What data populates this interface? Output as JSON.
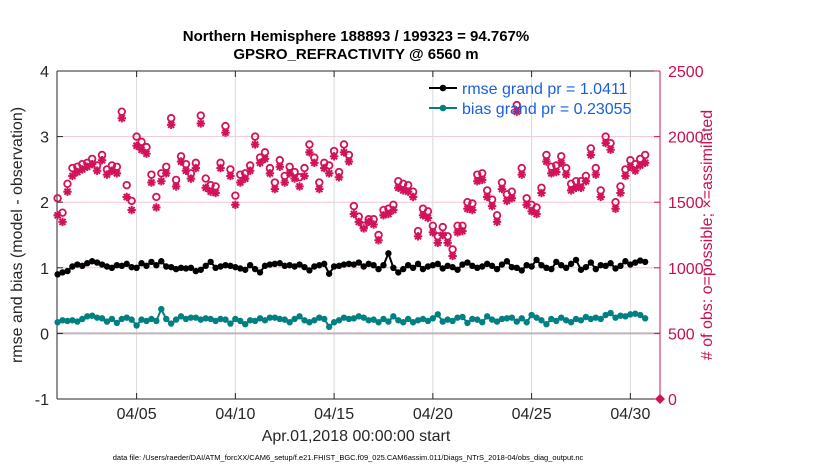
{
  "chart_data": {
    "type": "line",
    "title": "Northern Hemisphere 188893 / 199323 = 94.767%",
    "subtitle": "GPSRO_REFRACTIVITY @ 6560 m",
    "xlabel": "Apr.01,2018 00:00:00 start",
    "ylabel": "rmse and bias (model - observation)",
    "y2label": "# of obs: o=possible; ×=assimilated",
    "footnote": "data file: /Users/raeder/DAI/ATM_forcXX/CAM6_setup/f.e21.FHIST_BGC.f09_025.CAM6assim.011/Diags_NTrS_2018-04/obs_diag_output.nc",
    "x_unit": "days since Apr.01,2018 00:00:00",
    "x_step_days": 0.25,
    "xlim": [
      0,
      30.5
    ],
    "ylim": [
      -1,
      4
    ],
    "y2lim": [
      0,
      2500
    ],
    "xticks": [
      {
        "value": 4,
        "label": "04/05"
      },
      {
        "value": 9,
        "label": "04/10"
      },
      {
        "value": 14,
        "label": "04/15"
      },
      {
        "value": 19,
        "label": "04/20"
      },
      {
        "value": 24,
        "label": "04/25"
      },
      {
        "value": 29,
        "label": "04/30"
      }
    ],
    "yticks": [
      {
        "value": -1,
        "label": "-1"
      },
      {
        "value": 0,
        "label": "0"
      },
      {
        "value": 1,
        "label": "1"
      },
      {
        "value": 2,
        "label": "2"
      },
      {
        "value": 3,
        "label": "3"
      },
      {
        "value": 4,
        "label": "4"
      }
    ],
    "y2ticks": [
      {
        "value": 0,
        "label": "0"
      },
      {
        "value": 500,
        "label": "500"
      },
      {
        "value": 1000,
        "label": "1000"
      },
      {
        "value": 1500,
        "label": "1500"
      },
      {
        "value": 2000,
        "label": "2000"
      },
      {
        "value": 2500,
        "label": "2500"
      }
    ],
    "grid": true,
    "legend_placement": "top-right",
    "legend": [
      {
        "label": "rmse grand pr = 1.0411",
        "series": "rmse"
      },
      {
        "label": "bias grand pr = 0.23055",
        "series": "bias"
      }
    ],
    "colors": {
      "rmse": "#000000",
      "bias": "#008080",
      "obs": "#d1135a",
      "legend_text": "#1a5fe0",
      "grid_h": "#f2c6d6",
      "grid_v": "#d9d9d9",
      "zero_line": "#c0b4ba"
    },
    "series": [
      {
        "name": "rmse",
        "axis": "left",
        "marker": "circle",
        "values": [
          0.9,
          0.93,
          0.95,
          1.02,
          1.05,
          1.03,
          1.07,
          1.1,
          1.08,
          1.05,
          1.02,
          1.0,
          1.04,
          1.03,
          1.06,
          1.01,
          1.0,
          1.07,
          1.03,
          1.09,
          1.04,
          1.1,
          1.02,
          1.01,
          0.98,
          1.0,
          0.99,
          1.0,
          0.95,
          0.97,
          1.03,
          1.09,
          1.0,
          1.02,
          1.04,
          1.03,
          1.01,
          0.99,
          0.97,
          1.04,
          0.98,
          0.93,
          1.03,
          1.05,
          1.06,
          1.07,
          1.03,
          1.04,
          1.02,
          1.05,
          1.01,
          0.96,
          1.02,
          1.04,
          1.06,
          0.91,
          1.02,
          1.03,
          1.05,
          1.06,
          1.05,
          1.08,
          1.02,
          1.06,
          1.04,
          0.98,
          1.04,
          1.22,
          1.0,
          0.93,
          0.98,
          1.04,
          1.0,
          1.06,
          0.98,
          1.02,
          1.04,
          1.06,
          0.99,
          1.03,
          1.01,
          0.97,
          1.05,
          1.08,
          1.03,
          1.0,
          1.02,
          1.06,
          1.03,
          0.98,
          1.05,
          1.1,
          1.01,
          1.0,
          0.96,
          1.04,
          1.02,
          1.12,
          1.04,
          1.0,
          0.98,
          1.09,
          1.04,
          1.0,
          1.06,
          1.12,
          0.97,
          1.01,
          1.08,
          0.98,
          1.04,
          1.03,
          1.07,
          0.99,
          1.03,
          1.1,
          1.05,
          1.08,
          1.11,
          1.09
        ]
      },
      {
        "name": "bias",
        "axis": "left",
        "marker": "circle",
        "values": [
          0.17,
          0.2,
          0.19,
          0.2,
          0.18,
          0.22,
          0.26,
          0.27,
          0.24,
          0.23,
          0.18,
          0.22,
          0.16,
          0.22,
          0.24,
          0.21,
          0.12,
          0.21,
          0.19,
          0.22,
          0.19,
          0.37,
          0.22,
          0.15,
          0.21,
          0.26,
          0.22,
          0.24,
          0.24,
          0.21,
          0.23,
          0.22,
          0.19,
          0.22,
          0.21,
          0.15,
          0.22,
          0.19,
          0.14,
          0.2,
          0.19,
          0.23,
          0.2,
          0.24,
          0.24,
          0.22,
          0.21,
          0.17,
          0.22,
          0.26,
          0.2,
          0.17,
          0.2,
          0.24,
          0.22,
          0.1,
          0.17,
          0.2,
          0.24,
          0.22,
          0.23,
          0.26,
          0.24,
          0.2,
          0.21,
          0.17,
          0.22,
          0.18,
          0.26,
          0.2,
          0.17,
          0.22,
          0.17,
          0.2,
          0.22,
          0.19,
          0.23,
          0.29,
          0.18,
          0.21,
          0.19,
          0.24,
          0.25,
          0.16,
          0.22,
          0.21,
          0.17,
          0.26,
          0.21,
          0.18,
          0.22,
          0.23,
          0.24,
          0.18,
          0.23,
          0.17,
          0.28,
          0.24,
          0.2,
          0.14,
          0.22,
          0.19,
          0.24,
          0.2,
          0.17,
          0.22,
          0.2,
          0.25,
          0.22,
          0.24,
          0.22,
          0.28,
          0.31,
          0.24,
          0.27,
          0.26,
          0.29,
          0.3,
          0.28,
          0.23
        ]
      },
      {
        "name": "obs_possible",
        "axis": "right",
        "marker": "o",
        "values": [
          1530,
          1420,
          1640,
          1760,
          1770,
          1790,
          1800,
          1830,
          1780,
          1860,
          1750,
          1780,
          1770,
          2190,
          1630,
          1510,
          2000,
          1960,
          1920,
          1710,
          1540,
          1720,
          1770,
          2140,
          1670,
          1850,
          1790,
          1720,
          1800,
          2160,
          1680,
          1630,
          1620,
          1800,
          2080,
          1750,
          1550,
          1710,
          1720,
          1780,
          2000,
          1840,
          1880,
          1760,
          1650,
          1820,
          1700,
          1770,
          1730,
          1690,
          1760,
          1940,
          1840,
          1650,
          1800,
          1780,
          1890,
          1730,
          1940,
          1860,
          1470,
          1390,
          1320,
          1370,
          1370,
          1250,
          1440,
          1450,
          1480,
          1660,
          1640,
          1630,
          1580,
          1280,
          1450,
          1430,
          1320,
          1240,
          1310,
          1240,
          1140,
          1320,
          1320,
          1500,
          1490,
          1710,
          1720,
          1590,
          1520,
          1400,
          1650,
          1560,
          1580,
          2240,
          1760,
          1530,
          1480,
          1460,
          1610,
          1860,
          1770,
          1780,
          1850,
          1760,
          1640,
          1660,
          1660,
          1700,
          1910,
          1760,
          1590,
          2000,
          1950,
          1500,
          1620,
          1750,
          1820,
          1790,
          1830,
          1860
        ]
      },
      {
        "name": "obs_assimilated",
        "axis": "right",
        "marker": "asterisk",
        "values": [
          1400,
          1350,
          1580,
          1700,
          1730,
          1750,
          1770,
          1790,
          1740,
          1820,
          1710,
          1740,
          1720,
          2140,
          1540,
          1440,
          1930,
          1900,
          1870,
          1650,
          1460,
          1660,
          1720,
          2090,
          1620,
          1810,
          1740,
          1680,
          1760,
          2100,
          1610,
          1580,
          1570,
          1760,
          2030,
          1700,
          1480,
          1650,
          1680,
          1740,
          1940,
          1800,
          1830,
          1720,
          1600,
          1770,
          1650,
          1720,
          1680,
          1620,
          1700,
          1880,
          1800,
          1600,
          1760,
          1720,
          1850,
          1690,
          1880,
          1810,
          1410,
          1350,
          1300,
          1350,
          1330,
          1210,
          1400,
          1410,
          1440,
          1610,
          1590,
          1580,
          1540,
          1240,
          1400,
          1380,
          1270,
          1190,
          1250,
          1190,
          1090,
          1270,
          1280,
          1450,
          1440,
          1660,
          1670,
          1540,
          1470,
          1350,
          1600,
          1510,
          1530,
          2190,
          1710,
          1480,
          1430,
          1410,
          1570,
          1810,
          1720,
          1730,
          1800,
          1710,
          1590,
          1610,
          1610,
          1660,
          1860,
          1710,
          1540,
          1950,
          1900,
          1450,
          1570,
          1700,
          1770,
          1740,
          1780,
          1800
        ]
      }
    ],
    "annotation_marker": {
      "x": 30.5,
      "y2": 0,
      "shape": "diamond"
    }
  }
}
